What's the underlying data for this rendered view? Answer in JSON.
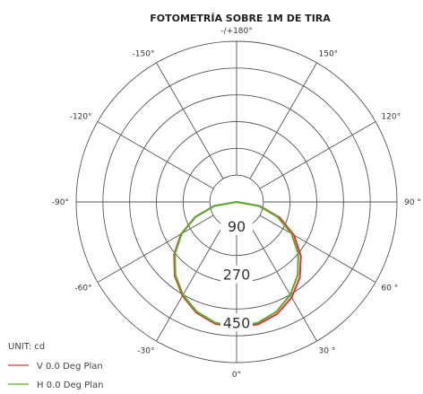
{
  "chart_data": {
    "type": "polar",
    "title": "FOTOMETRÍA SOBRE 1M DE TIRA",
    "unit_label": "UNIT: cd",
    "radial_max": 600,
    "rings": [
      100,
      200,
      300,
      400,
      500,
      600
    ],
    "ring_labels": [
      {
        "value": 90,
        "label": "90"
      },
      {
        "value": 270,
        "label": "270"
      },
      {
        "value": 450,
        "label": "450"
      }
    ],
    "angle_labels": [
      {
        "angle": 180,
        "label": "-/+180°"
      },
      {
        "angle": 150,
        "label": "150°"
      },
      {
        "angle": -150,
        "label": "-150°"
      },
      {
        "angle": 120,
        "label": "120°"
      },
      {
        "angle": -120,
        "label": "-120°"
      },
      {
        "angle": 90,
        "label": "90 °"
      },
      {
        "angle": -90,
        "label": "-90°"
      },
      {
        "angle": 60,
        "label": "60 °"
      },
      {
        "angle": -60,
        "label": "-60°"
      },
      {
        "angle": 30,
        "label": "30 °"
      },
      {
        "angle": -30,
        "label": "-30°"
      },
      {
        "angle": 0,
        "label": "0°"
      }
    ],
    "series": [
      {
        "name": "V 0.0 Deg Plan",
        "color": "#e8312f",
        "angles": [
          -90,
          -80,
          -70,
          -60,
          -50,
          -40,
          -30,
          -20,
          -10,
          0,
          10,
          20,
          30,
          40,
          50,
          60,
          70,
          80,
          90
        ],
        "values": [
          0,
          85,
          165,
          240,
          305,
          360,
          405,
          440,
          462,
          470,
          464,
          445,
          412,
          368,
          314,
          248,
          172,
          88,
          0
        ]
      },
      {
        "name": "H 0.0 Deg Plan",
        "color": "#5aab2e",
        "angles": [
          -90,
          -80,
          -70,
          -60,
          -50,
          -40,
          -30,
          -20,
          -10,
          0,
          10,
          20,
          30,
          40,
          50,
          60,
          70,
          80,
          90
        ],
        "values": [
          0,
          84,
          163,
          237,
          301,
          356,
          401,
          436,
          458,
          466,
          458,
          436,
          401,
          356,
          301,
          237,
          163,
          84,
          0
        ]
      }
    ]
  }
}
